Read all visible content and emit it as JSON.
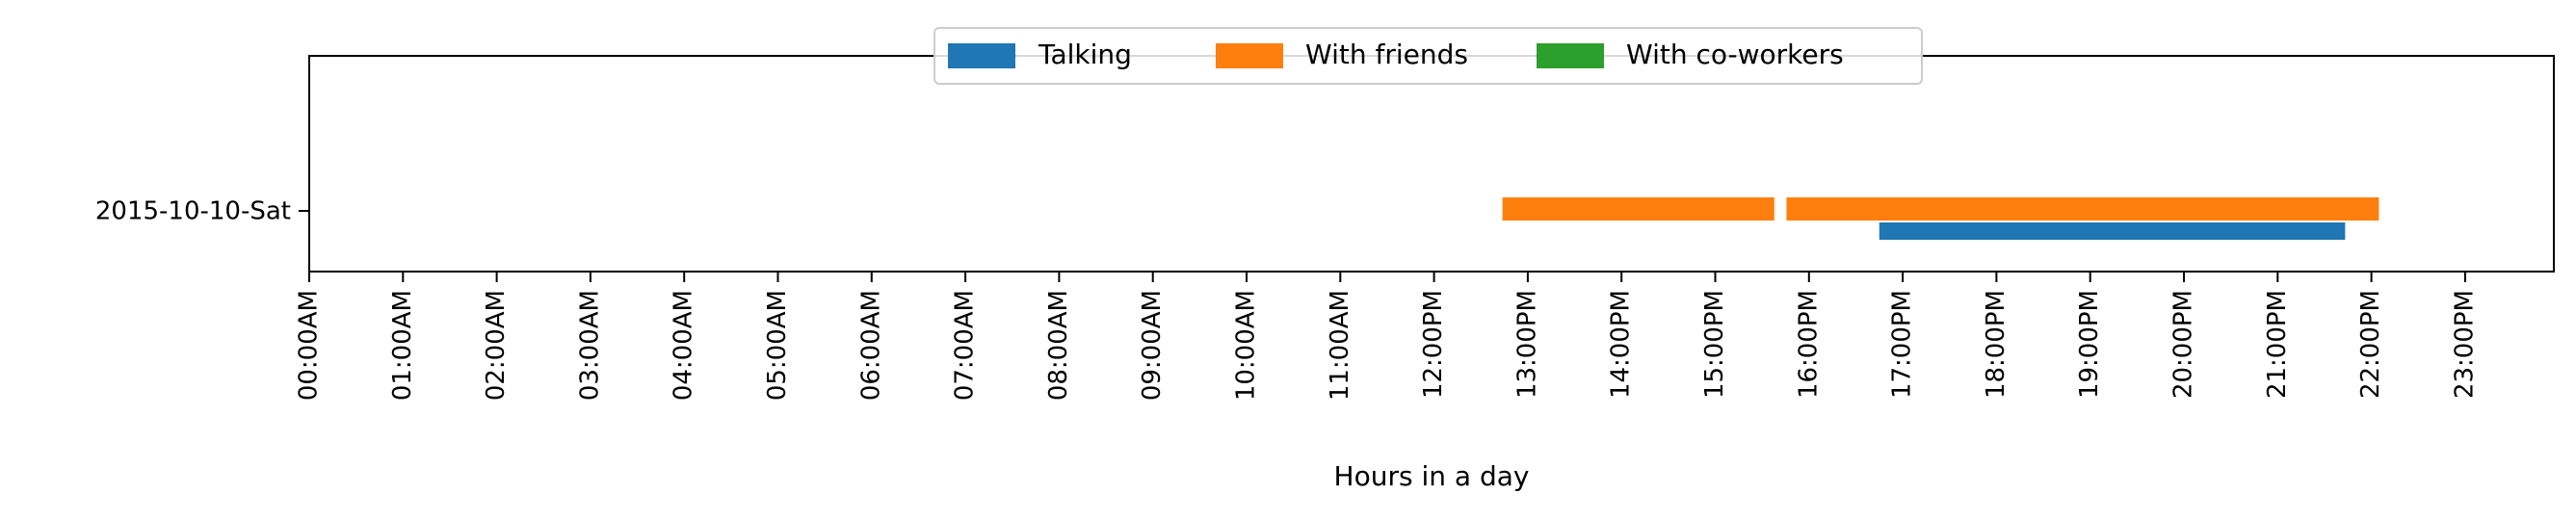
{
  "chart_data": {
    "type": "bar",
    "orientation": "horizontal-timeline",
    "title": "",
    "xlabel": "Hours in a day",
    "ylabel": "",
    "xlim": [
      0,
      24
    ],
    "x_ticks": [
      {
        "value": 0,
        "label": "00:00AM"
      },
      {
        "value": 1,
        "label": "01:00AM"
      },
      {
        "value": 2,
        "label": "02:00AM"
      },
      {
        "value": 3,
        "label": "03:00AM"
      },
      {
        "value": 4,
        "label": "04:00AM"
      },
      {
        "value": 5,
        "label": "05:00AM"
      },
      {
        "value": 6,
        "label": "06:00AM"
      },
      {
        "value": 7,
        "label": "07:00AM"
      },
      {
        "value": 8,
        "label": "08:00AM"
      },
      {
        "value": 9,
        "label": "09:00AM"
      },
      {
        "value": 10,
        "label": "10:00AM"
      },
      {
        "value": 11,
        "label": "11:00AM"
      },
      {
        "value": 12,
        "label": "12:00PM"
      },
      {
        "value": 13,
        "label": "13:00PM"
      },
      {
        "value": 14,
        "label": "14:00PM"
      },
      {
        "value": 15,
        "label": "15:00PM"
      },
      {
        "value": 16,
        "label": "16:00PM"
      },
      {
        "value": 17,
        "label": "17:00PM"
      },
      {
        "value": 18,
        "label": "18:00PM"
      },
      {
        "value": 19,
        "label": "19:00PM"
      },
      {
        "value": 20,
        "label": "20:00PM"
      },
      {
        "value": 21,
        "label": "21:00PM"
      },
      {
        "value": 22,
        "label": "22:00PM"
      },
      {
        "value": 23,
        "label": "23:00PM"
      }
    ],
    "categories": [
      "2015-10-10-Sat"
    ],
    "legend_position": "top-center",
    "grid": false,
    "series": [
      {
        "name": "Talking",
        "color": "#1f77b4",
        "lane": "lower",
        "intervals": [
          [
            16.75,
            21.72
          ]
        ]
      },
      {
        "name": "With friends",
        "color": "#ff7f0e",
        "lane": "upper",
        "intervals": [
          [
            12.73,
            15.63
          ],
          [
            15.76,
            22.08
          ]
        ]
      },
      {
        "name": "With co-workers",
        "color": "#2ca02c",
        "lane": "middle",
        "intervals": []
      }
    ]
  }
}
